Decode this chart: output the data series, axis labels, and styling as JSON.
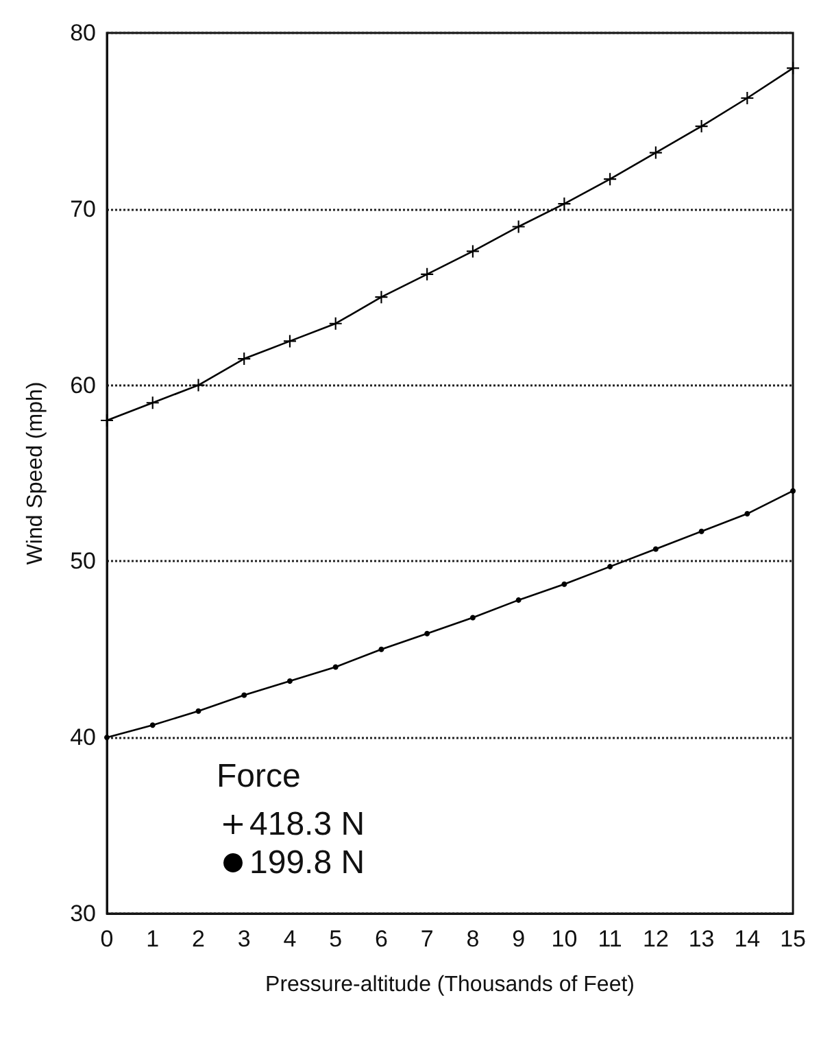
{
  "chart_data": {
    "type": "line",
    "x": [
      0,
      1,
      2,
      3,
      4,
      5,
      6,
      7,
      8,
      9,
      10,
      11,
      12,
      13,
      14,
      15
    ],
    "series": [
      {
        "name": "418.3 N",
        "color": "#000000",
        "marker": "cross",
        "values": [
          58,
          59,
          60,
          61.5,
          62.5,
          63.5,
          65,
          66.3,
          67.6,
          69,
          70.3,
          71.7,
          73.2,
          74.7,
          76.3,
          78
        ]
      },
      {
        "name": "199.8 N",
        "color": "#000000",
        "marker": "circle",
        "values": [
          40,
          40.7,
          41.5,
          42.4,
          43.2,
          44,
          45,
          45.9,
          46.8,
          47.8,
          48.7,
          49.7,
          50.7,
          51.7,
          52.7,
          54
        ]
      }
    ],
    "xlabel": "Pressure-altitude (Thousands of Feet)",
    "ylabel": "Wind Speed (mph)",
    "legend_title": "Force",
    "legend": "bottom left",
    "xlim": [
      0,
      15
    ],
    "xticks": [
      0,
      1,
      2,
      3,
      4,
      5,
      6,
      7,
      8,
      9,
      10,
      11,
      12,
      13,
      14,
      15
    ],
    "ylim": [
      30,
      80
    ],
    "yticks": [
      30,
      40,
      50,
      60,
      70,
      80
    ],
    "grid": "y",
    "line_style": "solid"
  }
}
